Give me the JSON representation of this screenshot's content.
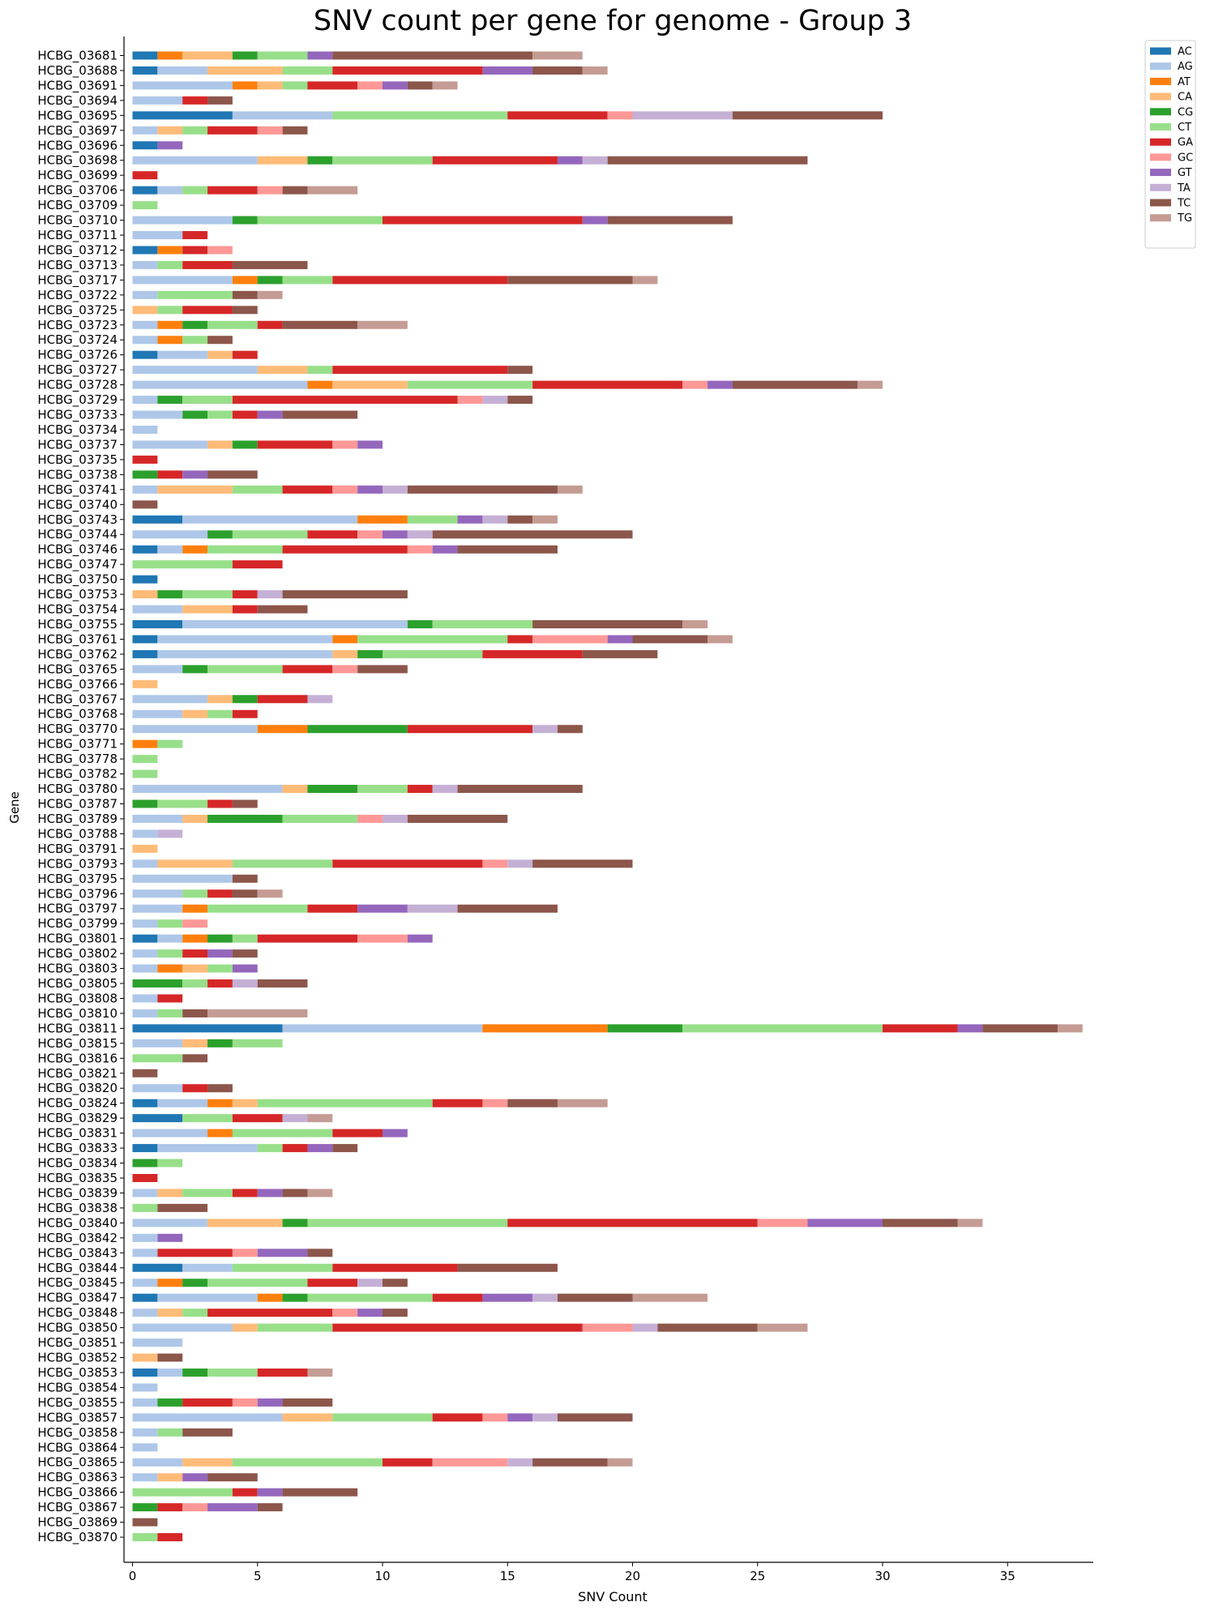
{
  "chart_data": {
    "type": "bar",
    "orientation": "horizontal",
    "stacked": true,
    "title": "SNV count per gene for genome - Group 3",
    "xlabel": "SNV Count",
    "ylabel": "Gene",
    "xlim": [
      0,
      38.5
    ],
    "xticks": [
      0,
      5,
      10,
      15,
      20,
      25,
      30,
      35
    ],
    "grid": false,
    "legend_position": "top-right outside",
    "categories": [
      "HCBG_03681",
      "HCBG_03688",
      "HCBG_03691",
      "HCBG_03694",
      "HCBG_03695",
      "HCBG_03697",
      "HCBG_03696",
      "HCBG_03698",
      "HCBG_03699",
      "HCBG_03706",
      "HCBG_03709",
      "HCBG_03710",
      "HCBG_03711",
      "HCBG_03712",
      "HCBG_03713",
      "HCBG_03717",
      "HCBG_03722",
      "HCBG_03725",
      "HCBG_03723",
      "HCBG_03724",
      "HCBG_03726",
      "HCBG_03727",
      "HCBG_03728",
      "HCBG_03729",
      "HCBG_03733",
      "HCBG_03734",
      "HCBG_03737",
      "HCBG_03735",
      "HCBG_03738",
      "HCBG_03741",
      "HCBG_03740",
      "HCBG_03743",
      "HCBG_03744",
      "HCBG_03746",
      "HCBG_03747",
      "HCBG_03750",
      "HCBG_03753",
      "HCBG_03754",
      "HCBG_03755",
      "HCBG_03761",
      "HCBG_03762",
      "HCBG_03765",
      "HCBG_03766",
      "HCBG_03767",
      "HCBG_03768",
      "HCBG_03770",
      "HCBG_03771",
      "HCBG_03778",
      "HCBG_03782",
      "HCBG_03780",
      "HCBG_03787",
      "HCBG_03789",
      "HCBG_03788",
      "HCBG_03791",
      "HCBG_03793",
      "HCBG_03795",
      "HCBG_03796",
      "HCBG_03797",
      "HCBG_03799",
      "HCBG_03801",
      "HCBG_03802",
      "HCBG_03803",
      "HCBG_03805",
      "HCBG_03808",
      "HCBG_03810",
      "HCBG_03811",
      "HCBG_03815",
      "HCBG_03816",
      "HCBG_03821",
      "HCBG_03820",
      "HCBG_03824",
      "HCBG_03829",
      "HCBG_03831",
      "HCBG_03833",
      "HCBG_03834",
      "HCBG_03835",
      "HCBG_03839",
      "HCBG_03838",
      "HCBG_03840",
      "HCBG_03842",
      "HCBG_03843",
      "HCBG_03844",
      "HCBG_03845",
      "HCBG_03847",
      "HCBG_03848",
      "HCBG_03850",
      "HCBG_03851",
      "HCBG_03852",
      "HCBG_03853",
      "HCBG_03854",
      "HCBG_03855",
      "HCBG_03857",
      "HCBG_03858",
      "HCBG_03864",
      "HCBG_03865",
      "HCBG_03863",
      "HCBG_03866",
      "HCBG_03867",
      "HCBG_03869",
      "HCBG_03870"
    ],
    "series": [
      {
        "name": "AC",
        "color": "#1f77b4",
        "values": [
          1,
          1,
          0,
          0,
          4,
          0,
          1,
          0,
          0,
          1,
          0,
          0,
          0,
          1,
          0,
          0,
          0,
          0,
          0,
          0,
          1,
          0,
          0,
          0,
          0,
          0,
          0,
          0,
          0,
          0,
          0,
          2,
          0,
          1,
          0,
          1,
          0,
          0,
          2,
          1,
          1,
          0,
          0,
          0,
          0,
          0,
          0,
          0,
          0,
          0,
          0,
          0,
          0,
          0,
          0,
          0,
          0,
          0,
          0,
          1,
          0,
          0,
          0,
          0,
          0,
          6,
          0,
          0,
          0,
          0,
          1,
          2,
          0,
          1,
          0,
          0,
          0,
          0,
          0,
          0,
          0,
          2,
          0,
          1,
          0,
          0,
          0,
          0,
          1,
          0,
          0,
          0,
          0,
          0,
          0,
          0,
          0,
          0,
          0,
          0
        ]
      },
      {
        "name": "AG",
        "color": "#aec7e8",
        "values": [
          0,
          2,
          4,
          2,
          4,
          1,
          0,
          5,
          0,
          1,
          0,
          4,
          2,
          0,
          1,
          4,
          1,
          0,
          1,
          1,
          2,
          5,
          7,
          1,
          2,
          1,
          3,
          0,
          0,
          1,
          0,
          7,
          3,
          1,
          0,
          0,
          0,
          2,
          9,
          7,
          7,
          2,
          0,
          3,
          2,
          5,
          0,
          0,
          0,
          6,
          0,
          2,
          1,
          0,
          1,
          4,
          2,
          2,
          1,
          1,
          1,
          1,
          0,
          1,
          1,
          8,
          2,
          0,
          0,
          2,
          2,
          0,
          3,
          4,
          0,
          0,
          1,
          0,
          3,
          1,
          1,
          2,
          1,
          4,
          1,
          4,
          2,
          0,
          1,
          1,
          1,
          6,
          1,
          1,
          2,
          1,
          0,
          0,
          0,
          0
        ]
      },
      {
        "name": "AT",
        "color": "#ff7f0e",
        "values": [
          1,
          0,
          1,
          0,
          0,
          0,
          0,
          0,
          0,
          0,
          0,
          0,
          0,
          1,
          0,
          1,
          0,
          0,
          1,
          1,
          0,
          0,
          1,
          0,
          0,
          0,
          0,
          0,
          0,
          0,
          0,
          2,
          0,
          1,
          0,
          0,
          0,
          0,
          0,
          1,
          0,
          0,
          0,
          0,
          0,
          2,
          1,
          0,
          0,
          0,
          0,
          0,
          0,
          0,
          0,
          0,
          0,
          1,
          0,
          1,
          0,
          1,
          0,
          0,
          0,
          5,
          0,
          0,
          0,
          0,
          1,
          0,
          1,
          0,
          0,
          0,
          0,
          0,
          0,
          0,
          0,
          0,
          1,
          1,
          0,
          0,
          0,
          0,
          0,
          0,
          0,
          0,
          0,
          0,
          0,
          0,
          0,
          0,
          0,
          0
        ]
      },
      {
        "name": "CA",
        "color": "#ffbb78",
        "values": [
          2,
          3,
          1,
          0,
          0,
          1,
          0,
          2,
          0,
          0,
          0,
          0,
          0,
          0,
          0,
          0,
          0,
          1,
          0,
          0,
          1,
          2,
          3,
          0,
          0,
          0,
          1,
          0,
          0,
          3,
          0,
          0,
          0,
          0,
          0,
          0,
          1,
          2,
          0,
          0,
          1,
          0,
          1,
          1,
          1,
          0,
          0,
          0,
          0,
          1,
          0,
          1,
          0,
          1,
          3,
          0,
          0,
          0,
          0,
          0,
          0,
          1,
          0,
          0,
          0,
          0,
          1,
          0,
          0,
          0,
          1,
          0,
          0,
          0,
          0,
          0,
          1,
          0,
          3,
          0,
          0,
          0,
          0,
          0,
          1,
          1,
          0,
          1,
          0,
          0,
          0,
          2,
          0,
          0,
          2,
          1,
          0,
          0,
          0,
          0
        ]
      },
      {
        "name": "CG",
        "color": "#2ca02c",
        "values": [
          1,
          0,
          0,
          0,
          0,
          0,
          0,
          1,
          0,
          0,
          0,
          1,
          0,
          0,
          0,
          1,
          0,
          0,
          1,
          0,
          0,
          0,
          0,
          1,
          1,
          0,
          1,
          0,
          1,
          0,
          0,
          0,
          1,
          0,
          0,
          0,
          1,
          0,
          1,
          0,
          1,
          1,
          0,
          1,
          0,
          4,
          0,
          0,
          0,
          2,
          1,
          3,
          0,
          0,
          0,
          0,
          0,
          0,
          0,
          1,
          0,
          0,
          2,
          0,
          0,
          3,
          1,
          0,
          0,
          0,
          0,
          0,
          0,
          0,
          1,
          0,
          0,
          0,
          1,
          0,
          0,
          0,
          1,
          1,
          0,
          0,
          0,
          0,
          1,
          0,
          1,
          0,
          0,
          0,
          0,
          0,
          0,
          1,
          0,
          0
        ]
      },
      {
        "name": "CT",
        "color": "#98df8a",
        "values": [
          2,
          2,
          1,
          0,
          7,
          1,
          0,
          4,
          0,
          1,
          1,
          5,
          0,
          0,
          1,
          2,
          3,
          1,
          2,
          1,
          0,
          1,
          5,
          2,
          1,
          0,
          0,
          0,
          0,
          2,
          0,
          2,
          3,
          3,
          4,
          0,
          2,
          0,
          4,
          6,
          4,
          3,
          0,
          0,
          1,
          0,
          1,
          1,
          1,
          2,
          2,
          3,
          0,
          0,
          4,
          0,
          1,
          4,
          1,
          1,
          1,
          1,
          1,
          0,
          1,
          8,
          2,
          2,
          0,
          0,
          7,
          2,
          4,
          1,
          1,
          0,
          2,
          1,
          8,
          0,
          0,
          4,
          4,
          5,
          1,
          3,
          0,
          0,
          2,
          0,
          0,
          4,
          1,
          0,
          6,
          0,
          4,
          0,
          0,
          1
        ]
      },
      {
        "name": "GA",
        "color": "#d62728",
        "values": [
          0,
          6,
          2,
          1,
          4,
          2,
          0,
          5,
          1,
          2,
          0,
          8,
          1,
          1,
          2,
          7,
          0,
          2,
          1,
          0,
          1,
          7,
          6,
          9,
          1,
          0,
          3,
          1,
          1,
          2,
          0,
          0,
          2,
          5,
          2,
          0,
          1,
          1,
          0,
          1,
          4,
          2,
          0,
          2,
          1,
          5,
          0,
          0,
          0,
          1,
          1,
          0,
          0,
          0,
          6,
          0,
          1,
          2,
          0,
          4,
          1,
          0,
          1,
          1,
          0,
          3,
          0,
          0,
          0,
          1,
          2,
          2,
          2,
          1,
          0,
          1,
          1,
          0,
          10,
          0,
          3,
          5,
          2,
          2,
          5,
          10,
          0,
          0,
          2,
          0,
          2,
          2,
          0,
          0,
          2,
          0,
          1,
          1,
          0,
          1
        ]
      },
      {
        "name": "GC",
        "color": "#ff9896",
        "values": [
          0,
          0,
          1,
          0,
          1,
          1,
          0,
          0,
          0,
          1,
          0,
          0,
          0,
          1,
          0,
          0,
          0,
          0,
          0,
          0,
          0,
          0,
          1,
          1,
          0,
          0,
          1,
          0,
          0,
          1,
          0,
          0,
          1,
          1,
          0,
          0,
          0,
          0,
          0,
          3,
          0,
          1,
          0,
          0,
          0,
          0,
          0,
          0,
          0,
          0,
          0,
          1,
          0,
          0,
          1,
          0,
          0,
          0,
          1,
          2,
          0,
          0,
          0,
          0,
          0,
          0,
          0,
          0,
          0,
          0,
          1,
          0,
          0,
          0,
          0,
          0,
          0,
          0,
          2,
          0,
          1,
          0,
          0,
          0,
          1,
          2,
          0,
          0,
          0,
          0,
          1,
          1,
          0,
          0,
          3,
          0,
          0,
          1,
          0,
          0
        ]
      },
      {
        "name": "GT",
        "color": "#9467bd",
        "values": [
          1,
          2,
          1,
          0,
          0,
          0,
          1,
          1,
          0,
          0,
          0,
          1,
          0,
          0,
          0,
          0,
          0,
          0,
          0,
          0,
          0,
          0,
          1,
          0,
          1,
          0,
          1,
          0,
          1,
          1,
          0,
          1,
          1,
          1,
          0,
          0,
          0,
          0,
          0,
          1,
          0,
          0,
          0,
          0,
          0,
          0,
          0,
          0,
          0,
          0,
          0,
          0,
          0,
          0,
          0,
          0,
          0,
          2,
          0,
          1,
          1,
          1,
          0,
          0,
          0,
          1,
          0,
          0,
          0,
          0,
          0,
          0,
          1,
          1,
          0,
          0,
          1,
          0,
          3,
          1,
          2,
          0,
          0,
          2,
          1,
          0,
          0,
          0,
          0,
          0,
          1,
          1,
          0,
          0,
          0,
          1,
          1,
          2,
          0,
          0
        ]
      },
      {
        "name": "TA",
        "color": "#c5b0d5",
        "values": [
          0,
          0,
          0,
          0,
          4,
          0,
          0,
          1,
          0,
          0,
          0,
          0,
          0,
          0,
          0,
          0,
          0,
          0,
          0,
          0,
          0,
          0,
          0,
          1,
          0,
          0,
          0,
          0,
          0,
          1,
          0,
          1,
          1,
          0,
          0,
          0,
          1,
          0,
          0,
          0,
          0,
          0,
          0,
          1,
          0,
          1,
          0,
          0,
          0,
          1,
          0,
          1,
          1,
          0,
          1,
          0,
          0,
          2,
          0,
          0,
          0,
          0,
          1,
          0,
          0,
          0,
          0,
          0,
          0,
          0,
          0,
          1,
          0,
          0,
          0,
          0,
          0,
          0,
          0,
          0,
          0,
          0,
          1,
          1,
          0,
          1,
          0,
          0,
          0,
          0,
          0,
          1,
          0,
          0,
          1,
          0,
          0,
          0,
          0,
          0
        ]
      },
      {
        "name": "TC",
        "color": "#8c564b",
        "values": [
          8,
          2,
          1,
          1,
          6,
          1,
          0,
          8,
          0,
          1,
          0,
          5,
          0,
          0,
          3,
          5,
          1,
          1,
          3,
          1,
          0,
          1,
          5,
          1,
          3,
          0,
          0,
          0,
          2,
          6,
          1,
          1,
          8,
          4,
          0,
          0,
          5,
          2,
          6,
          3,
          3,
          2,
          0,
          0,
          0,
          1,
          0,
          0,
          0,
          5,
          1,
          4,
          0,
          0,
          4,
          1,
          1,
          4,
          0,
          0,
          1,
          0,
          2,
          0,
          1,
          3,
          0,
          1,
          1,
          1,
          2,
          0,
          0,
          1,
          0,
          0,
          1,
          2,
          3,
          0,
          1,
          4,
          1,
          3,
          1,
          4,
          0,
          1,
          0,
          0,
          2,
          3,
          2,
          0,
          3,
          2,
          3,
          1,
          1,
          0
        ]
      },
      {
        "name": "TG",
        "color": "#c49c94",
        "values": [
          2,
          1,
          1,
          0,
          0,
          0,
          0,
          0,
          0,
          2,
          0,
          0,
          0,
          0,
          0,
          1,
          1,
          0,
          2,
          0,
          0,
          0,
          1,
          0,
          0,
          0,
          0,
          0,
          0,
          1,
          0,
          1,
          0,
          0,
          0,
          0,
          0,
          0,
          1,
          1,
          0,
          0,
          0,
          0,
          0,
          0,
          0,
          0,
          0,
          0,
          0,
          0,
          0,
          0,
          0,
          0,
          1,
          0,
          0,
          0,
          0,
          0,
          0,
          0,
          4,
          1,
          0,
          0,
          0,
          0,
          2,
          1,
          0,
          0,
          0,
          0,
          1,
          0,
          1,
          0,
          0,
          0,
          0,
          3,
          0,
          2,
          0,
          0,
          1,
          0,
          0,
          0,
          0,
          0,
          1,
          0,
          0,
          0,
          0,
          0
        ]
      }
    ]
  }
}
